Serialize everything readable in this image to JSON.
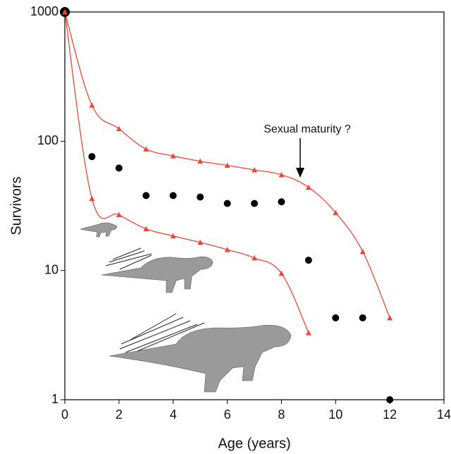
{
  "chart_data": {
    "type": "line",
    "xlabel": "Age (years)",
    "ylabel": "Survivors",
    "annotation": "Sexual maturity ?",
    "xlim": [
      0,
      14
    ],
    "xticks": [
      0,
      2,
      4,
      6,
      8,
      10,
      12,
      14
    ],
    "ylim": [
      1,
      1000
    ],
    "yticks": [
      1,
      10,
      100,
      1000
    ],
    "ylog": true,
    "series": [
      {
        "color": "#000000",
        "marker": "circle",
        "line": false,
        "x": [
          0,
          1,
          2,
          3,
          4,
          5,
          6,
          7,
          8,
          9,
          10,
          11,
          12
        ],
        "values": [
          1000,
          76,
          62,
          38,
          38,
          37,
          33,
          33,
          34,
          12,
          4.3,
          4.3,
          1
        ]
      },
      {
        "color": "#e8493a",
        "marker": "triangle",
        "line": true,
        "x": [
          0,
          1,
          2,
          3,
          4,
          5,
          6,
          7,
          8,
          9,
          10,
          11,
          12
        ],
        "values": [
          1000,
          190,
          125,
          87,
          77,
          70,
          65,
          60,
          55,
          44,
          28,
          14,
          4.3
        ]
      },
      {
        "color": "#e8493a",
        "marker": "triangle",
        "line": true,
        "x": [
          0,
          1,
          2,
          3,
          4,
          5,
          6,
          7,
          8,
          9
        ],
        "values": [
          1000,
          36,
          27,
          21,
          18.5,
          16.5,
          14.5,
          12.5,
          9.5,
          3.3
        ]
      }
    ]
  }
}
